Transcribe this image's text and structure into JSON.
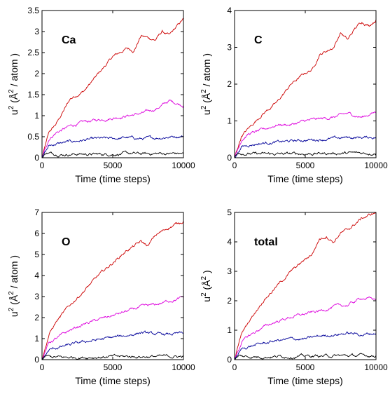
{
  "chart_data": [
    {
      "type": "line",
      "panel_label": "Ca",
      "xlabel": "Time (time steps)",
      "ylabel": "u",
      "ylabel_sup": "2",
      "ylabel_unit": "(Å",
      "ylabel_unit_sup": "2",
      "ylabel_tail": "/ atom )",
      "xlim": [
        0,
        10000
      ],
      "ylim": [
        0,
        3.5
      ],
      "xticks": [
        0,
        5000,
        10000
      ],
      "yticks": [
        0,
        0.5,
        1,
        1.5,
        2,
        2.5,
        3,
        3.5
      ],
      "ytick_labels": [
        "0",
        "0.5",
        "1",
        "1.5",
        "2",
        "2.5",
        "3",
        "3.5"
      ],
      "grid": false,
      "series": [
        {
          "color": "#cc0000",
          "x": [
            0,
            500,
            1000,
            1500,
            2000,
            3000,
            4000,
            5000,
            6000,
            6500,
            7000,
            8000,
            8500,
            9000,
            9500,
            10000
          ],
          "values": [
            0,
            0.6,
            0.8,
            1.1,
            1.4,
            1.6,
            2.0,
            2.4,
            2.6,
            2.55,
            2.9,
            2.8,
            3.0,
            2.9,
            3.1,
            3.3
          ]
        },
        {
          "color": "#dd00dd",
          "x": [
            0,
            500,
            1000,
            2000,
            3000,
            4000,
            5000,
            6000,
            7000,
            8000,
            9000,
            10000
          ],
          "values": [
            0,
            0.45,
            0.6,
            0.75,
            0.85,
            0.9,
            0.95,
            1.0,
            1.05,
            1.15,
            1.35,
            1.25
          ]
        },
        {
          "color": "#000099",
          "x": [
            0,
            500,
            1000,
            2000,
            3000,
            4000,
            5000,
            6000,
            7000,
            8000,
            9000,
            10000
          ],
          "values": [
            0,
            0.28,
            0.33,
            0.38,
            0.42,
            0.45,
            0.45,
            0.48,
            0.45,
            0.47,
            0.5,
            0.52
          ]
        },
        {
          "color": "#000000",
          "x": [
            0,
            300,
            700,
            1500,
            2500,
            4000,
            5000,
            6000,
            7000,
            8000,
            9000,
            10000
          ],
          "values": [
            0,
            0.12,
            0.1,
            0.08,
            0.09,
            0.08,
            0.09,
            0.1,
            0.09,
            0.1,
            0.1,
            0.1
          ]
        }
      ]
    },
    {
      "type": "line",
      "panel_label": "C",
      "xlabel": "Time (time steps)",
      "ylabel": "u",
      "ylabel_sup": "2",
      "ylabel_unit": "(Å",
      "ylabel_unit_sup": "2",
      "ylabel_tail": "/ atom )",
      "xlim": [
        0,
        10000
      ],
      "ylim": [
        0,
        4
      ],
      "xticks": [
        0,
        5000,
        10000
      ],
      "yticks": [
        0,
        1,
        2,
        3,
        4
      ],
      "ytick_labels": [
        "0",
        "1",
        "2",
        "3",
        "4"
      ],
      "grid": false,
      "series": [
        {
          "color": "#cc0000",
          "x": [
            0,
            500,
            1000,
            2000,
            3000,
            4000,
            5000,
            5500,
            6000,
            7000,
            7500,
            8000,
            8500,
            9000,
            9500,
            10000
          ],
          "values": [
            0,
            0.6,
            0.8,
            1.2,
            1.5,
            2.0,
            2.3,
            2.4,
            2.8,
            3.0,
            3.4,
            3.2,
            3.5,
            3.7,
            3.6,
            3.75
          ]
        },
        {
          "color": "#dd00dd",
          "x": [
            0,
            500,
            1000,
            2000,
            3000,
            4000,
            5000,
            6000,
            7000,
            8000,
            9000,
            10000
          ],
          "values": [
            0,
            0.5,
            0.65,
            0.75,
            0.9,
            0.9,
            1.0,
            1.05,
            1.1,
            1.2,
            1.1,
            1.25
          ]
        },
        {
          "color": "#000099",
          "x": [
            0,
            500,
            1000,
            2000,
            3000,
            4000,
            5000,
            6000,
            7000,
            8000,
            9000,
            10000
          ],
          "values": [
            0,
            0.3,
            0.35,
            0.4,
            0.42,
            0.45,
            0.48,
            0.5,
            0.52,
            0.55,
            0.55,
            0.56
          ]
        },
        {
          "color": "#000000",
          "x": [
            0,
            300,
            700,
            1500,
            3000,
            5000,
            7000,
            10000
          ],
          "values": [
            0,
            0.15,
            0.12,
            0.1,
            0.1,
            0.11,
            0.12,
            0.13
          ]
        }
      ]
    },
    {
      "type": "line",
      "panel_label": "O",
      "xlabel": "Time (time steps)",
      "ylabel": "u",
      "ylabel_sup": "2",
      "ylabel_unit": "(Å",
      "ylabel_unit_sup": "2",
      "ylabel_tail": "/ atom )",
      "xlim": [
        0,
        10000
      ],
      "ylim": [
        0,
        7
      ],
      "xticks": [
        0,
        5000,
        10000
      ],
      "yticks": [
        0,
        1,
        2,
        3,
        4,
        5,
        6,
        7
      ],
      "ytick_labels": [
        "0",
        "1",
        "2",
        "3",
        "4",
        "5",
        "6",
        "7"
      ],
      "grid": false,
      "series": [
        {
          "color": "#cc0000",
          "x": [
            0,
            500,
            1000,
            2000,
            3000,
            4000,
            5000,
            6000,
            7000,
            7500,
            8000,
            9000,
            10000
          ],
          "values": [
            0,
            1.2,
            1.8,
            2.6,
            3.3,
            4.0,
            4.6,
            5.2,
            5.6,
            5.4,
            5.9,
            6.3,
            6.6
          ]
        },
        {
          "color": "#dd00dd",
          "x": [
            0,
            500,
            1000,
            2000,
            3000,
            4000,
            5000,
            6000,
            7000,
            8000,
            9000,
            10000
          ],
          "values": [
            0,
            0.8,
            1.0,
            1.4,
            1.7,
            1.9,
            2.1,
            2.3,
            2.5,
            2.6,
            2.8,
            2.95
          ]
        },
        {
          "color": "#000099",
          "x": [
            0,
            500,
            1000,
            2000,
            3000,
            4000,
            5000,
            6000,
            7000,
            8000,
            9000,
            10000
          ],
          "values": [
            0,
            0.45,
            0.55,
            0.7,
            0.85,
            0.95,
            1.05,
            1.15,
            1.3,
            1.2,
            1.2,
            1.25
          ]
        },
        {
          "color": "#000000",
          "x": [
            0,
            300,
            700,
            1500,
            3000,
            5000,
            7000,
            10000
          ],
          "values": [
            0,
            0.15,
            0.12,
            0.1,
            0.12,
            0.14,
            0.15,
            0.15
          ]
        }
      ]
    },
    {
      "type": "line",
      "panel_label": "total",
      "xlabel": "Time (time steps)",
      "ylabel": "u",
      "ylabel_sup": "2",
      "ylabel_unit": "(Å",
      "ylabel_unit_sup": "2",
      "ylabel_tail": ")",
      "xlim": [
        0,
        10000
      ],
      "ylim": [
        0,
        5
      ],
      "xticks": [
        0,
        5000,
        10000
      ],
      "yticks": [
        0,
        1,
        2,
        3,
        4,
        5
      ],
      "ytick_labels": [
        "0",
        "1",
        "2",
        "3",
        "4",
        "5"
      ],
      "grid": false,
      "series": [
        {
          "color": "#cc0000",
          "x": [
            0,
            500,
            1000,
            2000,
            3000,
            4000,
            5000,
            5500,
            6000,
            6500,
            7000,
            7500,
            8000,
            8500,
            9000,
            9500,
            10000
          ],
          "values": [
            0,
            0.9,
            1.3,
            2.0,
            2.5,
            3.0,
            3.4,
            3.6,
            4.1,
            4.2,
            4.0,
            4.3,
            4.4,
            4.6,
            4.8,
            4.9,
            5.0
          ]
        },
        {
          "color": "#dd00dd",
          "x": [
            0,
            500,
            1000,
            2000,
            3000,
            4000,
            5000,
            6000,
            7000,
            8000,
            9000,
            10000
          ],
          "values": [
            0,
            0.6,
            0.8,
            1.1,
            1.3,
            1.45,
            1.55,
            1.65,
            1.8,
            1.85,
            2.1,
            2.05
          ]
        },
        {
          "color": "#000099",
          "x": [
            0,
            500,
            1000,
            2000,
            3000,
            4000,
            5000,
            6000,
            7000,
            8000,
            9000,
            10000
          ],
          "values": [
            0,
            0.35,
            0.45,
            0.55,
            0.65,
            0.7,
            0.7,
            0.8,
            0.85,
            0.9,
            0.85,
            0.9
          ]
        },
        {
          "color": "#000000",
          "x": [
            0,
            300,
            700,
            1500,
            3000,
            5000,
            7000,
            10000
          ],
          "values": [
            0,
            0.12,
            0.1,
            0.1,
            0.11,
            0.12,
            0.13,
            0.14
          ]
        }
      ]
    }
  ]
}
